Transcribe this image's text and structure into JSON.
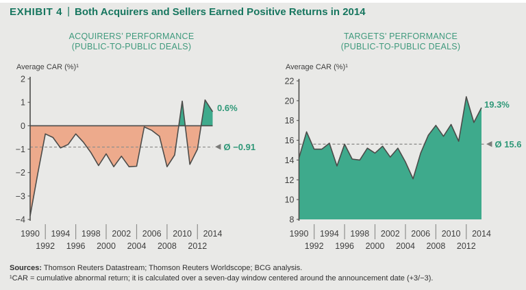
{
  "header": {
    "exhibit_label": "EXHIBIT 4",
    "separator": "|",
    "title": "Both Acquirers and Sellers Earned Positive Returns in 2014"
  },
  "chart_data": [
    {
      "id": "acquirers",
      "type": "area",
      "title": "ACQUIRERS’ PERFORMANCE",
      "subtitle": "(PUBLIC-TO-PUBLIC DEALS)",
      "ylabel": "Average CAR (%)¹",
      "x": [
        1990,
        1991,
        1992,
        1993,
        1994,
        1995,
        1996,
        1997,
        1998,
        1999,
        2000,
        2001,
        2002,
        2003,
        2004,
        2005,
        2006,
        2007,
        2008,
        2009,
        2010,
        2011,
        2012,
        2013,
        2014
      ],
      "values": [
        -3.85,
        -2.05,
        -0.35,
        -0.5,
        -0.95,
        -0.8,
        -0.35,
        -0.7,
        -1.15,
        -1.7,
        -1.2,
        -1.75,
        -1.3,
        -1.75,
        -1.73,
        -0.05,
        -0.2,
        -0.45,
        -1.75,
        -1.25,
        1.05,
        -1.65,
        -1.0,
        1.1,
        0.6
      ],
      "ylim": [
        -4,
        2
      ],
      "yticks": [
        "2",
        "1",
        "0",
        "−1",
        "−2",
        "−3",
        "−4"
      ],
      "xticks_top": [
        1990,
        1994,
        1998,
        2002,
        2006,
        2010,
        2014
      ],
      "xticks_bottom": [
        1992,
        1996,
        2000,
        2004,
        2008,
        2012
      ],
      "baseline": 0,
      "average": -0.91,
      "average_label": "Ø −0.91",
      "end_value": 0.6,
      "end_label": "0.6%",
      "grid": false,
      "legend": "none"
    },
    {
      "id": "targets",
      "type": "area",
      "title": "TARGETS’ PERFORMANCE",
      "subtitle": "(PUBLIC-TO-PUBLIC DEALS)",
      "ylabel": "Average CAR (%)¹",
      "x": [
        1990,
        1991,
        1992,
        1993,
        1994,
        1995,
        1996,
        1997,
        1998,
        1999,
        2000,
        2001,
        2002,
        2003,
        2004,
        2005,
        2006,
        2007,
        2008,
        2009,
        2010,
        2011,
        2012,
        2013,
        2014
      ],
      "values": [
        14.2,
        16.85,
        15.1,
        15.1,
        15.7,
        13.4,
        15.6,
        14.1,
        14.0,
        15.2,
        14.7,
        15.4,
        14.3,
        15.2,
        13.8,
        12.1,
        14.7,
        16.5,
        17.5,
        16.4,
        17.6,
        15.9,
        20.4,
        17.8,
        19.3
      ],
      "ylim": [
        8,
        22
      ],
      "yticks": [
        "22",
        "20",
        "18",
        "16",
        "14",
        "12",
        "10",
        "8"
      ],
      "xticks_top": [
        1990,
        1994,
        1998,
        2002,
        2006,
        2010,
        2014
      ],
      "xticks_bottom": [
        1992,
        1996,
        2000,
        2004,
        2008,
        2012
      ],
      "baseline": 8,
      "average": 15.6,
      "average_label": "Ø 15.6",
      "end_value": 19.3,
      "end_label": "19.3%",
      "grid": false,
      "legend": "none"
    }
  ],
  "footer": {
    "sources_label": "Sources:",
    "sources_text": " Thomson Reuters Datastream; Thomson Reuters Worldscope; BCG analysis.",
    "footnote": "¹CAR = cumulative abnormal return; it is calculated over a seven-day window centered around the announcement date (+3/−3)."
  },
  "icons": {
    "average_marker": "left-triangle-icon"
  },
  "colors": {
    "background": "#e9e9e7",
    "top_strip": "#ffffff",
    "title_green": "#17765f",
    "subtitle_green": "#3e997c",
    "annotation_green": "#2f9878",
    "fill_salmon": "#edaa8c",
    "fill_teal": "#3eaa8c",
    "data_line": "#4b4b49",
    "axis_line": "#4b4b49",
    "dash_line": "#8f8f8d",
    "tick_text": "#3e3e3e",
    "footer_text": "#303030",
    "marker_gray": "#7b7b79"
  }
}
